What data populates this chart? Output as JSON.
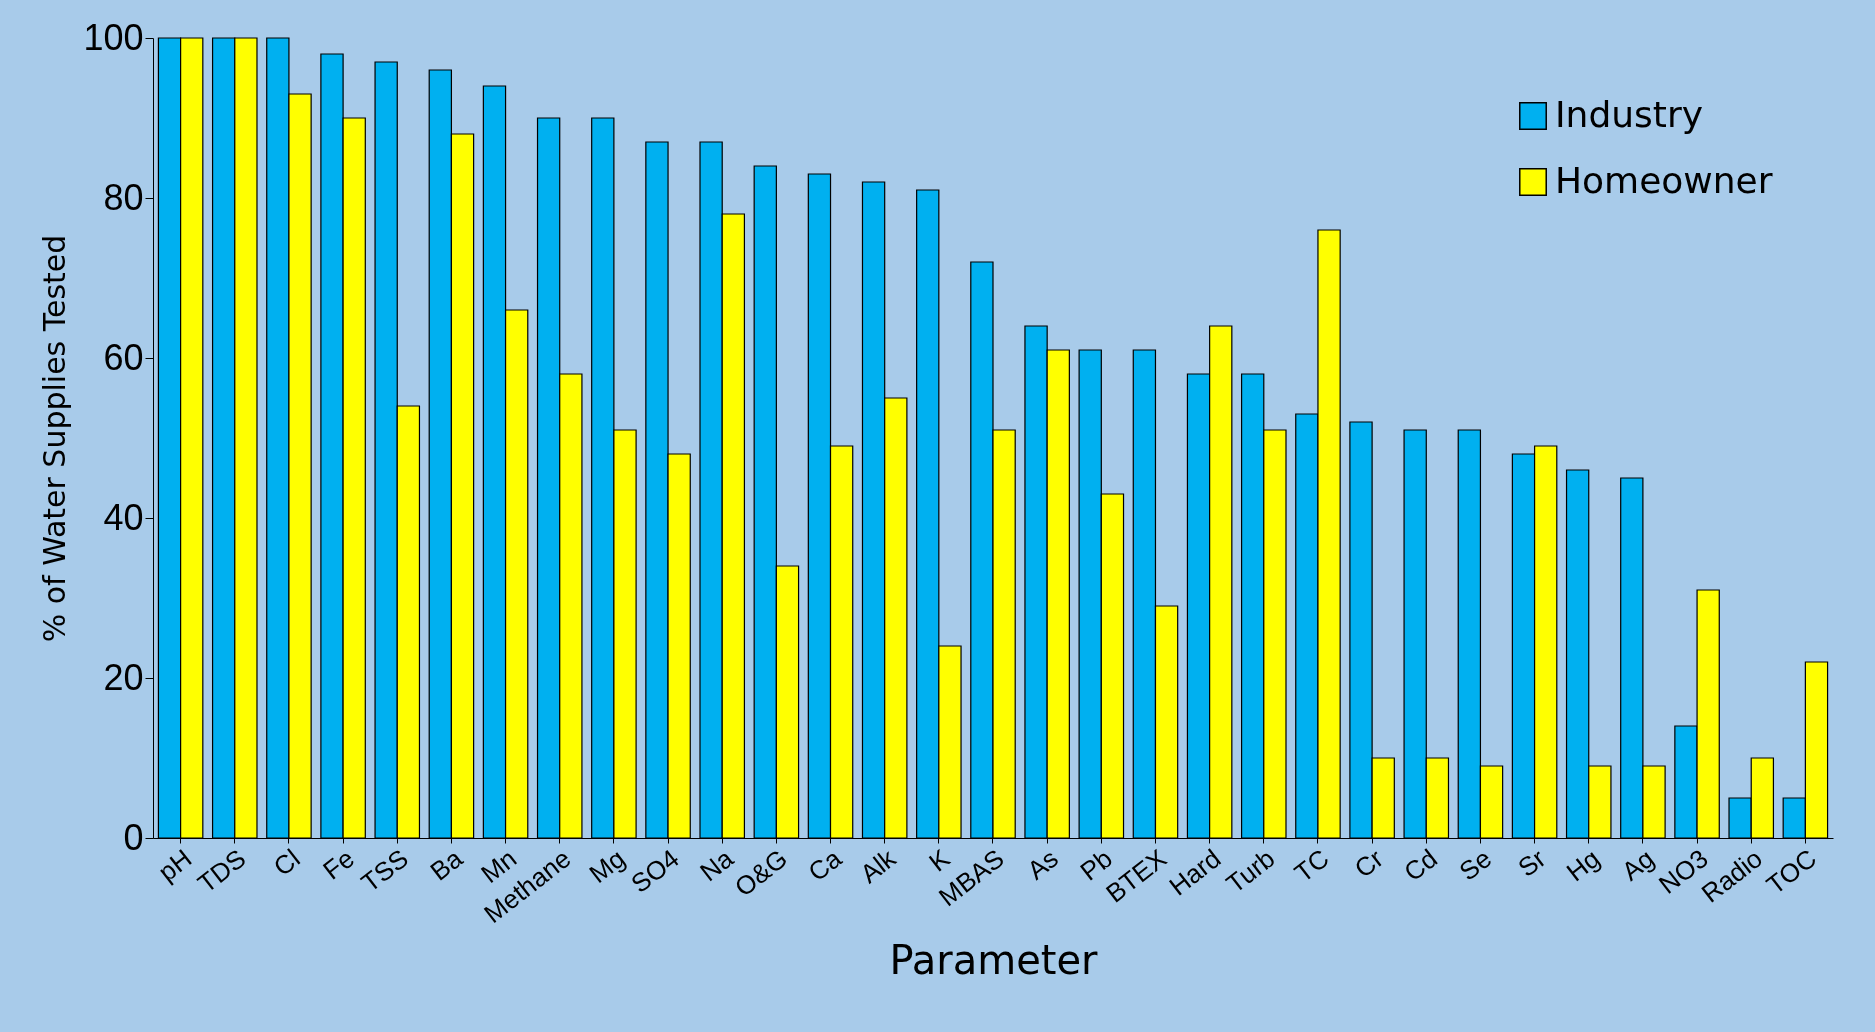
{
  "chart_data": {
    "type": "bar",
    "xlabel": "Parameter",
    "ylabel": "% of Water Supplies Tested",
    "categories": [
      "pH",
      "TDS",
      "Cl",
      "Fe",
      "TSS",
      "Ba",
      "Mn",
      "Methane",
      "Mg",
      "SO4",
      "Na",
      "O&G",
      "Ca",
      "Alk",
      "K",
      "MBAS",
      "As",
      "Pb",
      "BTEX",
      "Hard",
      "Turb",
      "TC",
      "Cr",
      "Cd",
      "Se",
      "Sr",
      "Hg",
      "Ag",
      "NO3",
      "Radio",
      "TOC"
    ],
    "series": [
      {
        "name": "Industry",
        "color": "#00b0f0",
        "values": [
          100,
          100,
          100,
          98,
          97,
          96,
          94,
          90,
          90,
          87,
          87,
          84,
          83,
          82,
          81,
          72,
          64,
          61,
          61,
          58,
          58,
          53,
          52,
          51,
          51,
          48,
          46,
          45,
          14,
          5,
          5
        ]
      },
      {
        "name": "Homeowner",
        "color": "#ffff00",
        "values": [
          100,
          100,
          93,
          90,
          54,
          88,
          66,
          58,
          51,
          48,
          78,
          34,
          49,
          55,
          24,
          51,
          61,
          43,
          29,
          64,
          51,
          76,
          10,
          10,
          9,
          49,
          9,
          9,
          31,
          10,
          22
        ]
      }
    ],
    "ylim": [
      0,
      100
    ],
    "yticks": [
      0,
      20,
      40,
      60,
      80,
      100
    ],
    "grid": false,
    "legend": "top right"
  }
}
